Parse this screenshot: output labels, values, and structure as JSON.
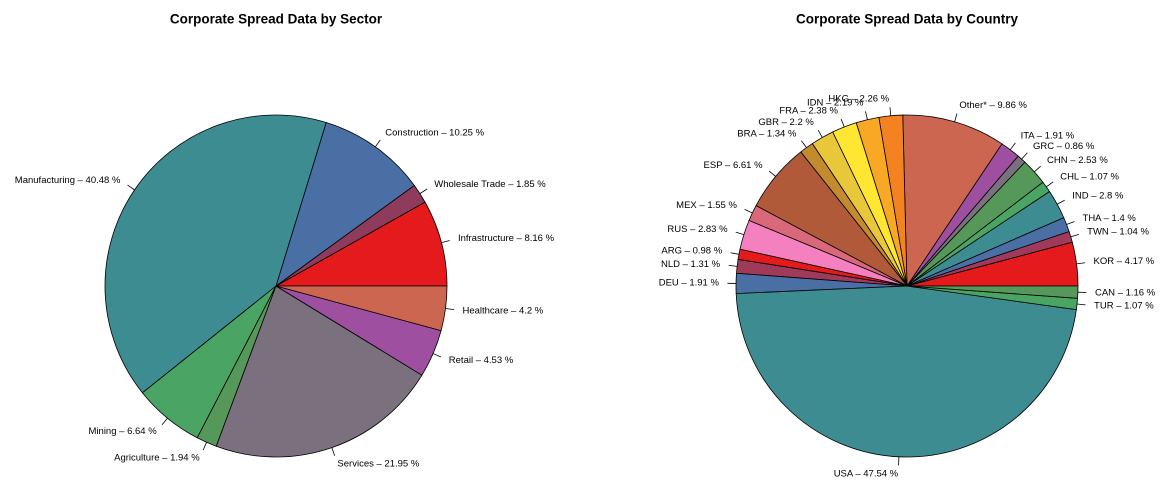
{
  "chart_data": [
    {
      "type": "pie",
      "title": "Corporate Spread Data by Sector",
      "labels": [
        "Infrastructure – 8.16 %",
        "Wholesale Trade – 1.85 %",
        "Construction – 10.25 %",
        "Manufacturing – 40.48 %",
        "Mining – 6.64 %",
        "Agriculture – 1.94 %",
        "Services – 21.95 %",
        "Retail – 4.53 %",
        "Healthcare – 4.2 %"
      ],
      "values": [
        8.16,
        1.85,
        10.25,
        40.48,
        6.64,
        1.94,
        21.95,
        4.53,
        4.2
      ],
      "colors": [
        "#e41a1c",
        "#8e3b5c",
        "#4a6fa5",
        "#3d8c92",
        "#4aa564",
        "#55985a",
        "#7a707e",
        "#9e4f9f",
        "#cd6651"
      ]
    },
    {
      "type": "pie",
      "title": "Corporate Spread Data by Country",
      "labels": [
        "KOR – 4.17 %",
        "TWN – 1.04 %",
        "THA – 1.4 %",
        "IND – 2.8 %",
        "CHL – 1.07 %",
        "CHN – 2.53 %",
        "GRC – 0.86 %",
        "ITA – 1.91 %",
        "Other* – 9.86 %",
        "HKG – 2.26 %",
        "IDN – 2.19 %",
        "FRA – 2.38 %",
        "GBR – 2.2 %",
        "BRA – 1.34 %",
        "ESP – 6.61 %",
        "MEX – 1.55 %",
        "RUS – 2.83 %",
        "ARG – 0.98 %",
        "NLD – 1.31 %",
        "DEU – 1.91 %",
        "USA – 47.54 %",
        "TUR – 1.07 %",
        "CAN – 1.16 %"
      ],
      "values": [
        4.17,
        1.04,
        1.4,
        2.8,
        1.07,
        2.53,
        0.86,
        1.91,
        9.86,
        2.26,
        2.19,
        2.38,
        2.2,
        1.34,
        6.61,
        1.55,
        2.83,
        0.98,
        1.31,
        1.91,
        47.54,
        1.07,
        1.16
      ],
      "colors": [
        "#e41a1c",
        "#a03a5a",
        "#4a6fa5",
        "#3d8c92",
        "#4aa564",
        "#55985a",
        "#7a707e",
        "#9e4f9f",
        "#cd6651",
        "#f58220",
        "#f9a825",
        "#ffe633",
        "#e8c83a",
        "#c48a2e",
        "#b05a3a",
        "#d9687a",
        "#f580c0",
        "#e41a1c",
        "#a03a5a",
        "#4a6fa5",
        "#3d8c92",
        "#4aa564",
        "#55985a"
      ]
    }
  ]
}
